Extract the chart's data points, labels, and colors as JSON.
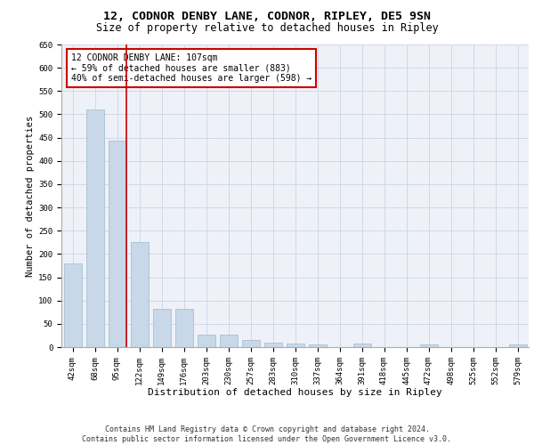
{
  "title1": "12, CODNOR DENBY LANE, CODNOR, RIPLEY, DE5 9SN",
  "title2": "Size of property relative to detached houses in Ripley",
  "xlabel": "Distribution of detached houses by size in Ripley",
  "ylabel": "Number of detached properties",
  "categories": [
    "42sqm",
    "68sqm",
    "95sqm",
    "122sqm",
    "149sqm",
    "176sqm",
    "203sqm",
    "230sqm",
    "257sqm",
    "283sqm",
    "310sqm",
    "337sqm",
    "364sqm",
    "391sqm",
    "418sqm",
    "445sqm",
    "472sqm",
    "498sqm",
    "525sqm",
    "552sqm",
    "579sqm"
  ],
  "values": [
    180,
    510,
    443,
    225,
    83,
    83,
    27,
    27,
    15,
    10,
    7,
    5,
    0,
    7,
    0,
    0,
    5,
    0,
    0,
    0,
    5
  ],
  "bar_color": "#c8d8e8",
  "bar_edge_color": "#a0b8cc",
  "grid_color": "#d0d8e8",
  "background_color": "#eef2f8",
  "vline_color": "#cc0000",
  "annotation_text": "12 CODNOR DENBY LANE: 107sqm\n← 59% of detached houses are smaller (883)\n40% of semi-detached houses are larger (598) →",
  "annotation_box_color": "#ffffff",
  "annotation_box_edge": "#cc0000",
  "ylim": [
    0,
    650
  ],
  "yticks": [
    0,
    50,
    100,
    150,
    200,
    250,
    300,
    350,
    400,
    450,
    500,
    550,
    600,
    650
  ],
  "footer": "Contains HM Land Registry data © Crown copyright and database right 2024.\nContains public sector information licensed under the Open Government Licence v3.0.",
  "title1_fontsize": 9.5,
  "title2_fontsize": 8.5,
  "xlabel_fontsize": 8,
  "ylabel_fontsize": 7.5,
  "tick_fontsize": 6.5,
  "annotation_fontsize": 7,
  "footer_fontsize": 6
}
